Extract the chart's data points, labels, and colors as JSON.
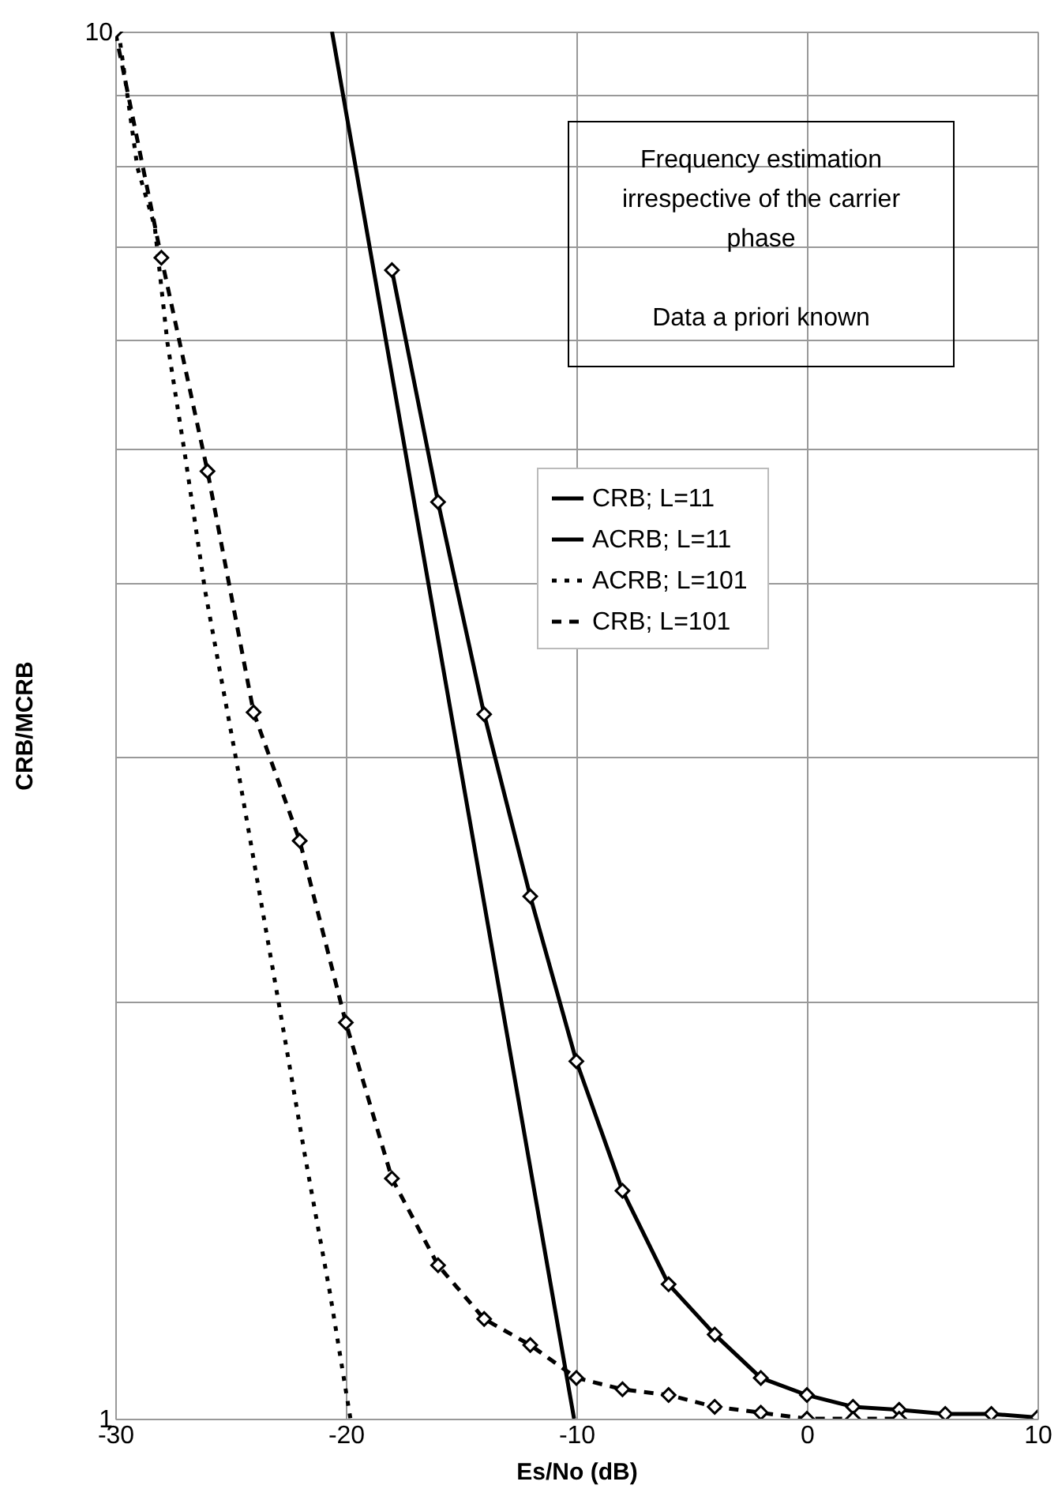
{
  "chart_data": {
    "type": "line",
    "xlabel": "Es/No (dB)",
    "ylabel": "CRB/MCRB",
    "log": "y",
    "xlim": [
      -30,
      10
    ],
    "xticks": [
      -30,
      -20,
      -10,
      0,
      10
    ],
    "ylim": [
      1,
      10
    ],
    "yticks": [
      1,
      {
        "value": 2,
        "label": null
      },
      {
        "value": 3,
        "label": null
      },
      {
        "value": 4,
        "label": null
      },
      {
        "value": 5,
        "label": null
      },
      {
        "value": 6,
        "label": null
      },
      {
        "value": 7,
        "label": null
      },
      {
        "value": 8,
        "label": null
      },
      {
        "value": 9,
        "label": null
      },
      10
    ],
    "grid": true,
    "legend": "right",
    "annotations": [
      "Frequency estimation irrespective of the carrier phase",
      "Data a priori known"
    ],
    "series": [
      {
        "name": "CRB; L=11",
        "color": "#000000",
        "marker": "diamond",
        "line_style": "solid",
        "x": [
          -18,
          -16,
          -14,
          -12,
          -10,
          -8,
          -6,
          -4,
          -2,
          0,
          2,
          4,
          6,
          8,
          10
        ],
        "values": [
          6.73,
          4.58,
          3.22,
          2.38,
          1.81,
          1.46,
          1.25,
          1.15,
          1.07,
          1.04,
          1.02,
          1.015,
          1.008,
          1.008,
          1.002
        ]
      },
      {
        "name": "ACRB; L=11",
        "color": "#000000",
        "marker": "none",
        "line_style": "solid",
        "x": [
          -20.6,
          -16,
          -10.1
        ],
        "values": [
          10,
          3.65,
          1
        ]
      },
      {
        "name": "ACRB;  L=101",
        "color": "#000000",
        "marker": "none",
        "line_style": "dotted",
        "x": [
          -30,
          -29.8,
          -29.04,
          -28.29,
          -27.74,
          -26.99,
          -26.1,
          -24.73,
          -23.7,
          -22.81,
          -21.78,
          -20.68,
          -19.8
        ],
        "values": [
          10,
          9.85,
          7.98,
          7.24,
          5.97,
          4.97,
          3.95,
          2.97,
          2.37,
          1.95,
          1.55,
          1.23,
          1
        ]
      },
      {
        "name": "CRB; L=101",
        "color": "#000000",
        "marker": "diamond",
        "line_style": "dashed",
        "x": [
          -30,
          -28,
          -26,
          -24,
          -22,
          -20,
          -18,
          -16,
          -14,
          -12,
          -10,
          -8,
          -6,
          -4,
          -2,
          0,
          2,
          4
        ],
        "values": [
          10,
          6.87,
          4.82,
          3.23,
          2.61,
          1.93,
          1.49,
          1.29,
          1.18,
          1.13,
          1.07,
          1.05,
          1.04,
          1.02,
          1.01,
          1.0,
          1.0,
          1.0
        ]
      }
    ]
  }
}
